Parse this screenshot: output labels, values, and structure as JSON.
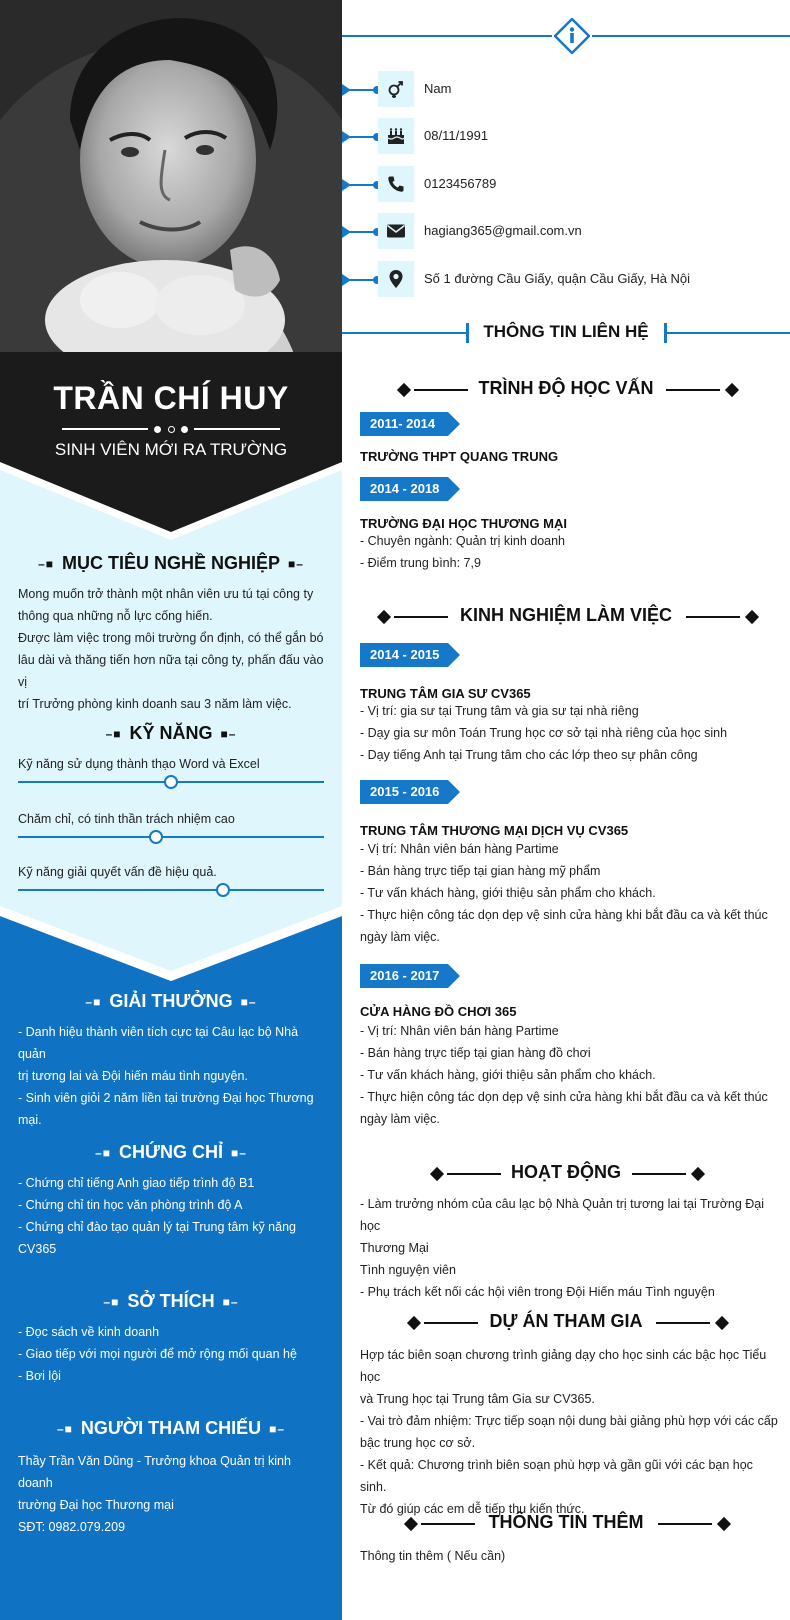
{
  "profile": {
    "name": "TRẦN CHÍ HUY",
    "role": "SINH VIÊN MỚI RA TRƯỜNG"
  },
  "colors": {
    "accent": "#1578c8",
    "blue_panel": "#0f72c2",
    "light_panel": "#dff6fd",
    "dark_banner": "#1b1b1b"
  },
  "icons": {
    "info": "info-icon",
    "gender": "gender-icon",
    "birthday": "birthday-cake-icon",
    "phone": "phone-icon",
    "email": "envelope-icon",
    "address": "map-pin-icon"
  },
  "contact": {
    "title": "THÔNG TIN LIÊN HỆ",
    "gender": "Nam",
    "birthday": "08/11/1991",
    "phone": "0123456789",
    "email": "hagiang365@gmail.com.vn",
    "address": "Số 1 đường Cầu Giấy, quận Cầu Giấy, Hà Nội"
  },
  "objective": {
    "title": "MỤC TIÊU NGHỀ NGHIỆP",
    "lines": [
      "Mong muốn trở thành một nhân viên ưu tú tại công ty",
      "thông qua những nỗ lực cống hiến.",
      "Được làm việc trong môi trường ổn định, có thể gắn bó",
      "lâu dài và thăng tiến hơn nữa tại công ty, phấn đấu vào vị",
      "trí Trưởng phòng kinh doanh sau 3 năm làm việc."
    ]
  },
  "skills": {
    "title": "KỸ NĂNG",
    "items": [
      {
        "label": "Kỹ năng sử dụng thành thạo Word và Excel",
        "level": 0.5
      },
      {
        "label": "Chăm chỉ, có tinh thần trách nhiệm cao",
        "level": 0.45
      },
      {
        "label": "Kỹ năng giải quyết vấn đề hiệu quả.",
        "level": 0.67
      }
    ]
  },
  "awards": {
    "title": "GIẢI THƯỞNG",
    "lines": [
      "- Danh hiệu thành viên tích cực tại Câu lạc bộ Nhà quản",
      "trị tương lai và Đội hiến máu tình nguyện.",
      "- Sinh viên giỏi 2 năm liền tại trường Đại học Thương",
      "mại."
    ]
  },
  "certificates": {
    "title": "CHỨNG CHỈ",
    "lines": [
      "- Chứng chỉ tiếng Anh giao tiếp trình độ B1",
      "- Chứng chỉ tin học văn phòng trình độ A",
      "- Chứng chỉ đào tạo quản lý tại Trung tâm kỹ năng",
      "CV365"
    ]
  },
  "hobbies": {
    "title": "SỞ THÍCH",
    "lines": [
      "- Đọc sách về kinh doanh",
      "- Giao tiếp với mọi người để mở rộng mối quan hệ",
      "- Bơi lội"
    ]
  },
  "references": {
    "title": "NGƯỜI THAM CHIẾU",
    "lines": [
      "Thầy Trần Văn Dũng - Trưởng khoa Quản trị kinh doanh",
      "trường Đại học Thương mại",
      "SĐT: 0982.079.209"
    ]
  },
  "education": {
    "title": "TRÌNH ĐỘ HỌC VẤN",
    "entries": [
      {
        "period": "2011- 2014",
        "org": "TRƯỜNG THPT QUANG TRUNG",
        "lines": []
      },
      {
        "period": "2014 - 2018",
        "org": "TRƯỜNG ĐẠI HỌC THƯƠNG MẠI",
        "lines": [
          "- Chuyên ngành: Quản trị kinh doanh",
          "- Điểm trung bình: 7,9"
        ]
      }
    ]
  },
  "experience": {
    "title": "KINH NGHIỆM LÀM VIỆC",
    "entries": [
      {
        "period": "2014 - 2015",
        "org": "TRUNG TÂM GIA SƯ CV365",
        "lines": [
          "- Vị trí: gia sư tại Trung tâm và gia sư tại nhà riêng",
          "- Dạy gia sư môn Toán Trung học cơ sở tại nhà riêng của học sinh",
          "- Dạy tiếng Anh tại Trung tâm cho các lớp theo  sự phân công"
        ]
      },
      {
        "period": "2015 - 2016",
        "org": "TRUNG TÂM THƯƠNG MẠI DỊCH VỤ CV365",
        "lines": [
          "- Vị trí: Nhân viên bán hàng Partime",
          "- Bán hàng trực tiếp tại gian hàng mỹ phẩm",
          "- Tư vấn khách hàng, giới thiệu sản phẩm cho khách.",
          "- Thực hiện công tác dọn dẹp vệ sinh cửa hàng khi bắt đầu ca và kết thúc",
          "ngày làm việc."
        ]
      },
      {
        "period": "2016 - 2017",
        "org": "CỬA HÀNG ĐỒ CHƠI 365",
        "lines": [
          "- Vị trí: Nhân viên bán hàng Partime",
          "- Bán hàng trực tiếp tại gian hàng đồ chơi",
          "- Tư vấn khách hàng, giới thiệu sản phẩm cho khách.",
          "- Thực hiện công tác dọn dẹp vệ sinh cửa hàng khi bắt đầu ca và kết thúc",
          "ngày làm việc."
        ]
      }
    ]
  },
  "activities": {
    "title": "HOẠT ĐỘNG",
    "lines": [
      "- Làm trưởng nhóm của câu lạc bộ Nhà Quản trị tương lai tại Trường Đại học",
      "Thương Mại",
      "Tình nguyện viên",
      "- Phụ trách kết nối các hội viên trong Đội Hiến máu Tình nguyện"
    ]
  },
  "projects": {
    "title": "DỰ ÁN THAM GIA",
    "lines": [
      "Hợp tác biên soạn chương trình giảng dạy cho học sinh các bậc học Tiểu học",
      "và Trung học tại Trung tâm Gia sư CV365.",
      "- Vai trò đảm nhiệm: Trực tiếp soạn nội dung bài giảng phù hợp với các cấp",
      "bậc trung học cơ sở.",
      "- Kết quả: Chương trình biên soạn phù hợp và gần gũi với các bạn học sinh.",
      "Từ đó giúp các em dễ tiếp thu kiến thức."
    ]
  },
  "extra": {
    "title": "THÔNG TIN THÊM",
    "lines": [
      "Thông tin thêm ( Nếu cần)"
    ]
  }
}
